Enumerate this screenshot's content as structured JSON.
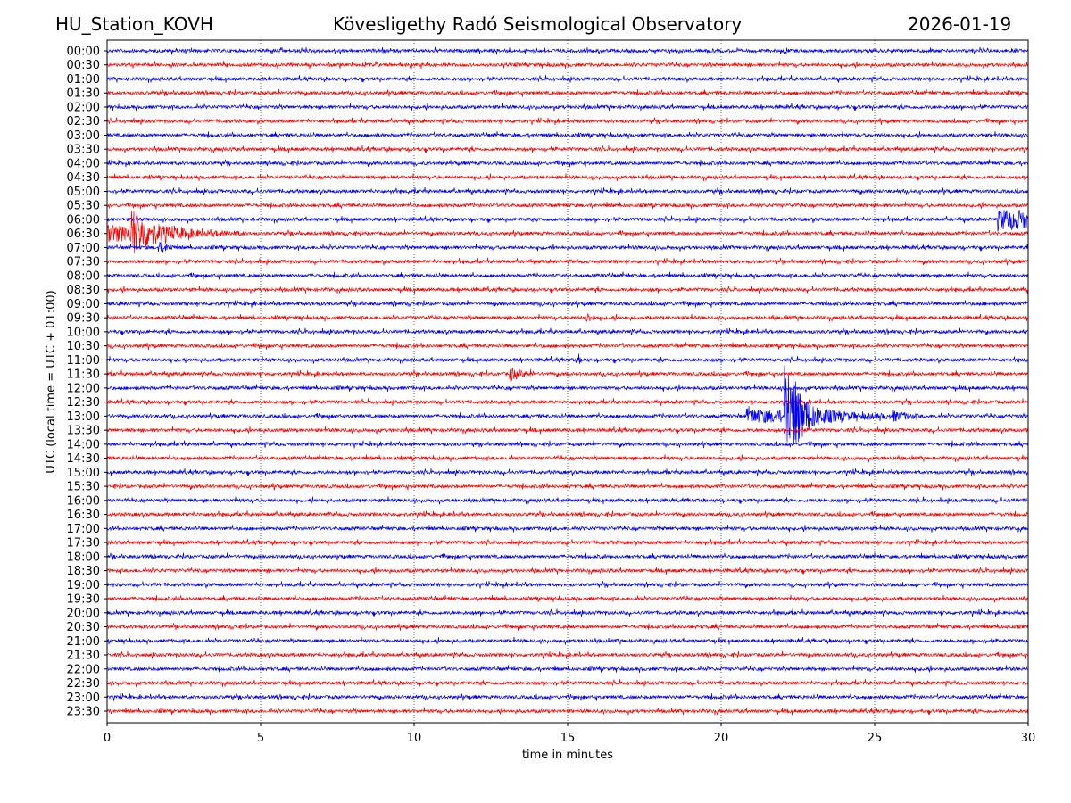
{
  "header": {
    "station": "HU_Station_KOVH",
    "observatory": "Kövesligethy Radó Seismological Observatory",
    "date": "2026-01-19"
  },
  "chart_data": {
    "type": "line",
    "title": "Kövesligethy Radó Seismological Observatory",
    "xlabel": "time in minutes",
    "ylabel": "UTC (local time = UTC + 01:00)",
    "xlim": [
      0,
      30
    ],
    "xticks": [
      "0",
      "5",
      "10",
      "15",
      "20",
      "25",
      "30"
    ],
    "xtick_values": [
      0,
      5,
      10,
      15,
      20,
      25,
      30
    ],
    "grid": "vertical dotted at 5-minute intervals",
    "row_labels": [
      "00:00",
      "00:30",
      "01:00",
      "01:30",
      "02:00",
      "02:30",
      "03:00",
      "03:30",
      "04:00",
      "04:30",
      "05:00",
      "05:30",
      "06:00",
      "06:30",
      "07:00",
      "07:30",
      "08:00",
      "08:30",
      "09:00",
      "09:30",
      "10:00",
      "10:30",
      "11:00",
      "11:30",
      "12:00",
      "12:30",
      "13:00",
      "13:30",
      "14:00",
      "14:30",
      "15:00",
      "15:30",
      "16:00",
      "16:30",
      "17:00",
      "17:30",
      "18:00",
      "18:30",
      "19:00",
      "19:30",
      "20:00",
      "20:30",
      "21:00",
      "21:30",
      "22:00",
      "22:30",
      "23:00",
      "23:30"
    ],
    "colors": [
      "#0000ff",
      "#ff0000"
    ],
    "noise_level": 1,
    "events": [
      {
        "row": "06:00",
        "start": 29.0,
        "end": 30,
        "amplitude": 6,
        "decay": 5
      },
      {
        "row": "06:30",
        "start": 0.0,
        "end": 4.5,
        "amplitude": 5,
        "decay": 2
      },
      {
        "row": "06:30",
        "start": 0.75,
        "end": 4.5,
        "amplitude": 14,
        "decay": 0.6
      },
      {
        "row": "07:00",
        "start": 1.65,
        "end": 2.2,
        "amplitude": 4,
        "decay": 0.3
      },
      {
        "row": "09:30",
        "start": 15.6,
        "end": 15.9,
        "amplitude": 3,
        "decay": 0.2
      },
      {
        "row": "11:00",
        "start": 15.35,
        "end": 15.45,
        "amplitude": 4,
        "decay": 0.05
      },
      {
        "row": "11:30",
        "start": 13.1,
        "end": 14.0,
        "amplitude": 4,
        "decay": 0.4
      },
      {
        "row": "13:00",
        "start": 20.8,
        "end": 22.0,
        "amplitude": 4,
        "decay": 3
      },
      {
        "row": "13:00",
        "start": 22.05,
        "end": 30,
        "amplitude": 45,
        "decay": 0.35
      },
      {
        "row": "13:00",
        "start": 22.3,
        "end": 25.5,
        "amplitude": 6,
        "decay": 1.5
      },
      {
        "row": "13:00",
        "start": 25.6,
        "end": 26.4,
        "amplitude": 3,
        "decay": 0.5
      }
    ]
  }
}
